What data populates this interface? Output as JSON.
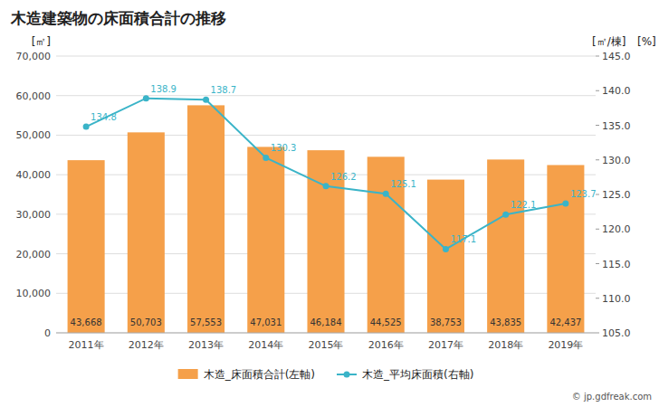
{
  "chart_data": {
    "type": "bar",
    "title": "木造建築物の床面積合計の推移",
    "categories": [
      "2011年",
      "2012年",
      "2013年",
      "2014年",
      "2015年",
      "2016年",
      "2017年",
      "2018年",
      "2019年"
    ],
    "series": [
      {
        "name": "木造_床面積合計(左軸)",
        "type": "bar",
        "color": "#f5a04a",
        "values": [
          43668,
          50703,
          57553,
          47031,
          46184,
          44525,
          38753,
          43835,
          42437
        ],
        "data_labels": true,
        "value_labels": [
          "43,668",
          "50,703",
          "57,553",
          "47,031",
          "46,184",
          "44,525",
          "38,753",
          "43,835",
          "42,437"
        ]
      },
      {
        "name": "木造_平均床面積(右軸)",
        "type": "line",
        "color": "#3ab4c8",
        "axis": "y2",
        "marker": "circle",
        "values": [
          134.8,
          138.9,
          138.7,
          130.3,
          126.2,
          125.1,
          117.1,
          122.1,
          123.7
        ],
        "data_labels": true
      }
    ],
    "ylabel": "[㎡]",
    "y2label": "[㎡/棟]",
    "ylim": [
      0,
      70000
    ],
    "yticks": [
      0,
      {
        "value": 10000,
        "label": "10,000"
      },
      {
        "value": 20000,
        "label": "20,000"
      },
      {
        "value": 30000,
        "label": "30,000"
      },
      {
        "value": 40000,
        "label": "40,000"
      },
      {
        "value": 50000,
        "label": "50,000"
      },
      {
        "value": 60000,
        "label": "60,000"
      },
      {
        "value": 70000,
        "label": "70,000"
      }
    ],
    "y2lim": [
      105.0,
      145.0
    ],
    "y2ticks": [
      {
        "value": 105.0,
        "label": "105.0"
      },
      {
        "value": 110.0,
        "label": "110.0"
      },
      {
        "value": 115.0,
        "label": "115.0"
      },
      {
        "value": 120.0,
        "label": "120.0"
      },
      {
        "value": 125.0,
        "label": "125.0"
      },
      {
        "value": 130.0,
        "label": "130.0"
      },
      {
        "value": 135.0,
        "label": "135.0"
      },
      {
        "value": 140.0,
        "label": "140.0"
      },
      {
        "value": 145.0,
        "label": "145.0"
      }
    ],
    "grid": true,
    "legend": "bottom",
    "annotations": [
      "[%]",
      "© jp.gdfreak.com"
    ]
  }
}
